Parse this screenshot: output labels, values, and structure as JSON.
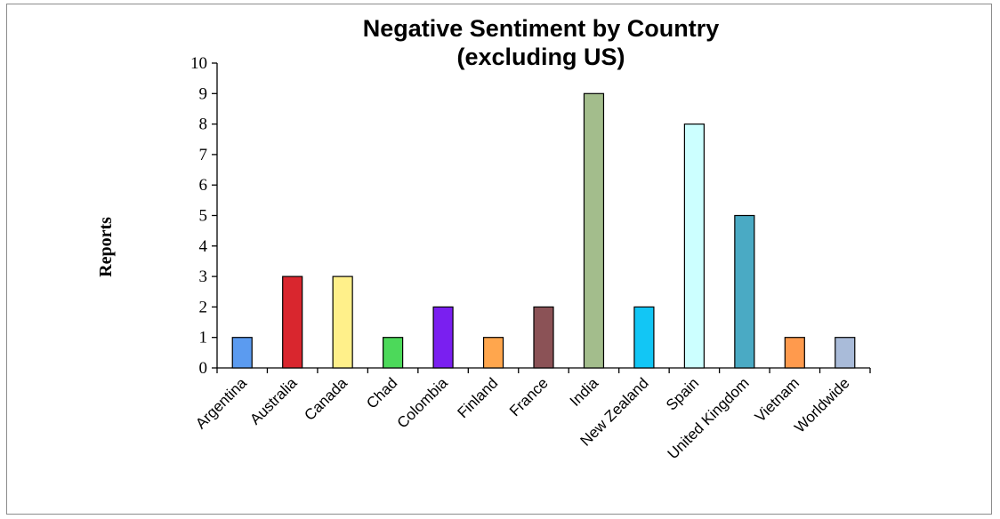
{
  "chart_data": {
    "type": "bar",
    "title": [
      "Negative Sentiment by Country",
      "(excluding US)"
    ],
    "xlabel": "",
    "ylabel": "Reports",
    "ylim": [
      0,
      10
    ],
    "yticks": [
      "0",
      "1",
      "2",
      "3",
      "4",
      "5",
      "6",
      "7",
      "8",
      "9",
      "10"
    ],
    "categories": [
      "Argentina",
      "Australia",
      "Canada",
      "Chad",
      "Colombia",
      "Finland",
      "France",
      "India",
      "New Zealand",
      "Spain",
      "United Kingdom",
      "Vietnam",
      "Worldwide"
    ],
    "values": [
      1,
      3,
      3,
      1,
      2,
      1,
      2,
      9,
      2,
      8,
      5,
      1,
      1
    ],
    "colors": [
      "#5b9bf0",
      "#d9262e",
      "#fff08a",
      "#4cd95a",
      "#7a1ff0",
      "#ffa64d",
      "#8b5256",
      "#a3bd8c",
      "#12c6f5",
      "#ccffff",
      "#4aaac4",
      "#ff9a4d",
      "#a9bbd9"
    ],
    "grid": false,
    "legend": "none"
  }
}
